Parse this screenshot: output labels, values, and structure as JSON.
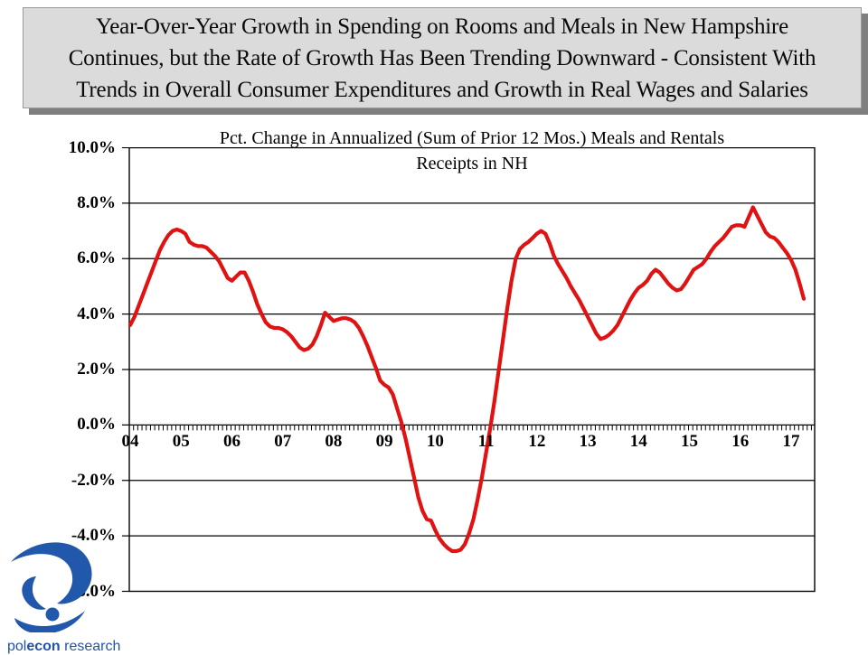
{
  "slide": {
    "title_lines": [
      "Year-Over-Year Growth in Spending on Rooms and Meals in New Hampshire",
      "Continues, but the Rate of Growth Has Been Trending Downward - Consistent With",
      "Trends in Overall Consumer Expenditures and Growth in Real Wages and Salaries"
    ]
  },
  "logo": {
    "text_part1": "pol",
    "text_part2": "econ",
    "text_part3": " research",
    "color": "#2453a6"
  },
  "chart_data": {
    "type": "line",
    "title_line1": "Pct. Change in Annualized (Sum of Prior 12 Mos.) Meals and Rentals",
    "title_line2": "Receipts in NH",
    "ylim": [
      -6,
      10
    ],
    "y_tick_step": 2,
    "y_ticks": [
      "10.0%",
      "8.0%",
      "6.0%",
      "4.0%",
      "2.0%",
      "0.0%",
      "-2.0%",
      "-4.0%",
      "-6.0%"
    ],
    "gridline_values": [
      8,
      6,
      4,
      2,
      0,
      -2,
      -4
    ],
    "x_labels": [
      "04",
      "05",
      "06",
      "07",
      "08",
      "09",
      "10",
      "11",
      "12",
      "13",
      "14",
      "15",
      "16",
      "17"
    ],
    "points_per_year": 12,
    "x_start_label": "04",
    "line_color": "#e01212",
    "series": [
      {
        "name": "Pct. change in annualized (sum of prior 12 mos.) meals and rentals receipts in NH",
        "values": [
          3.6,
          3.9,
          4.3,
          4.7,
          5.1,
          5.5,
          5.9,
          6.3,
          6.6,
          6.85,
          7.0,
          7.05,
          7.0,
          6.9,
          6.6,
          6.5,
          6.45,
          6.45,
          6.4,
          6.25,
          6.1,
          5.9,
          5.6,
          5.3,
          5.2,
          5.35,
          5.5,
          5.5,
          5.2,
          4.8,
          4.35,
          4.0,
          3.7,
          3.55,
          3.5,
          3.5,
          3.45,
          3.35,
          3.2,
          3.0,
          2.8,
          2.7,
          2.75,
          2.9,
          3.2,
          3.6,
          4.05,
          3.9,
          3.75,
          3.8,
          3.85,
          3.85,
          3.8,
          3.7,
          3.5,
          3.2,
          2.85,
          2.45,
          2.05,
          1.6,
          1.45,
          1.35,
          1.1,
          0.6,
          0.1,
          -0.5,
          -1.2,
          -1.9,
          -2.6,
          -3.1,
          -3.4,
          -3.45,
          -3.8,
          -4.1,
          -4.3,
          -4.45,
          -4.55,
          -4.55,
          -4.5,
          -4.3,
          -3.9,
          -3.4,
          -2.7,
          -1.9,
          -1.0,
          -0.1,
          0.9,
          2.0,
          3.1,
          4.2,
          5.2,
          6.0,
          6.35,
          6.5,
          6.6,
          6.75,
          6.9,
          7.0,
          6.9,
          6.55,
          6.1,
          5.8,
          5.55,
          5.3,
          5.0,
          4.75,
          4.5,
          4.2,
          3.9,
          3.6,
          3.3,
          3.1,
          3.15,
          3.25,
          3.4,
          3.6,
          3.9,
          4.2,
          4.5,
          4.75,
          4.95,
          5.05,
          5.2,
          5.45,
          5.6,
          5.5,
          5.3,
          5.1,
          4.95,
          4.85,
          4.9,
          5.1,
          5.35,
          5.6,
          5.7,
          5.8,
          6.0,
          6.25,
          6.45,
          6.6,
          6.75,
          6.95,
          7.15,
          7.2,
          7.2,
          7.15,
          7.5,
          7.85,
          7.55,
          7.25,
          6.95,
          6.8,
          6.75,
          6.6,
          6.4,
          6.2,
          5.95,
          5.6,
          5.1,
          4.55
        ]
      }
    ]
  }
}
